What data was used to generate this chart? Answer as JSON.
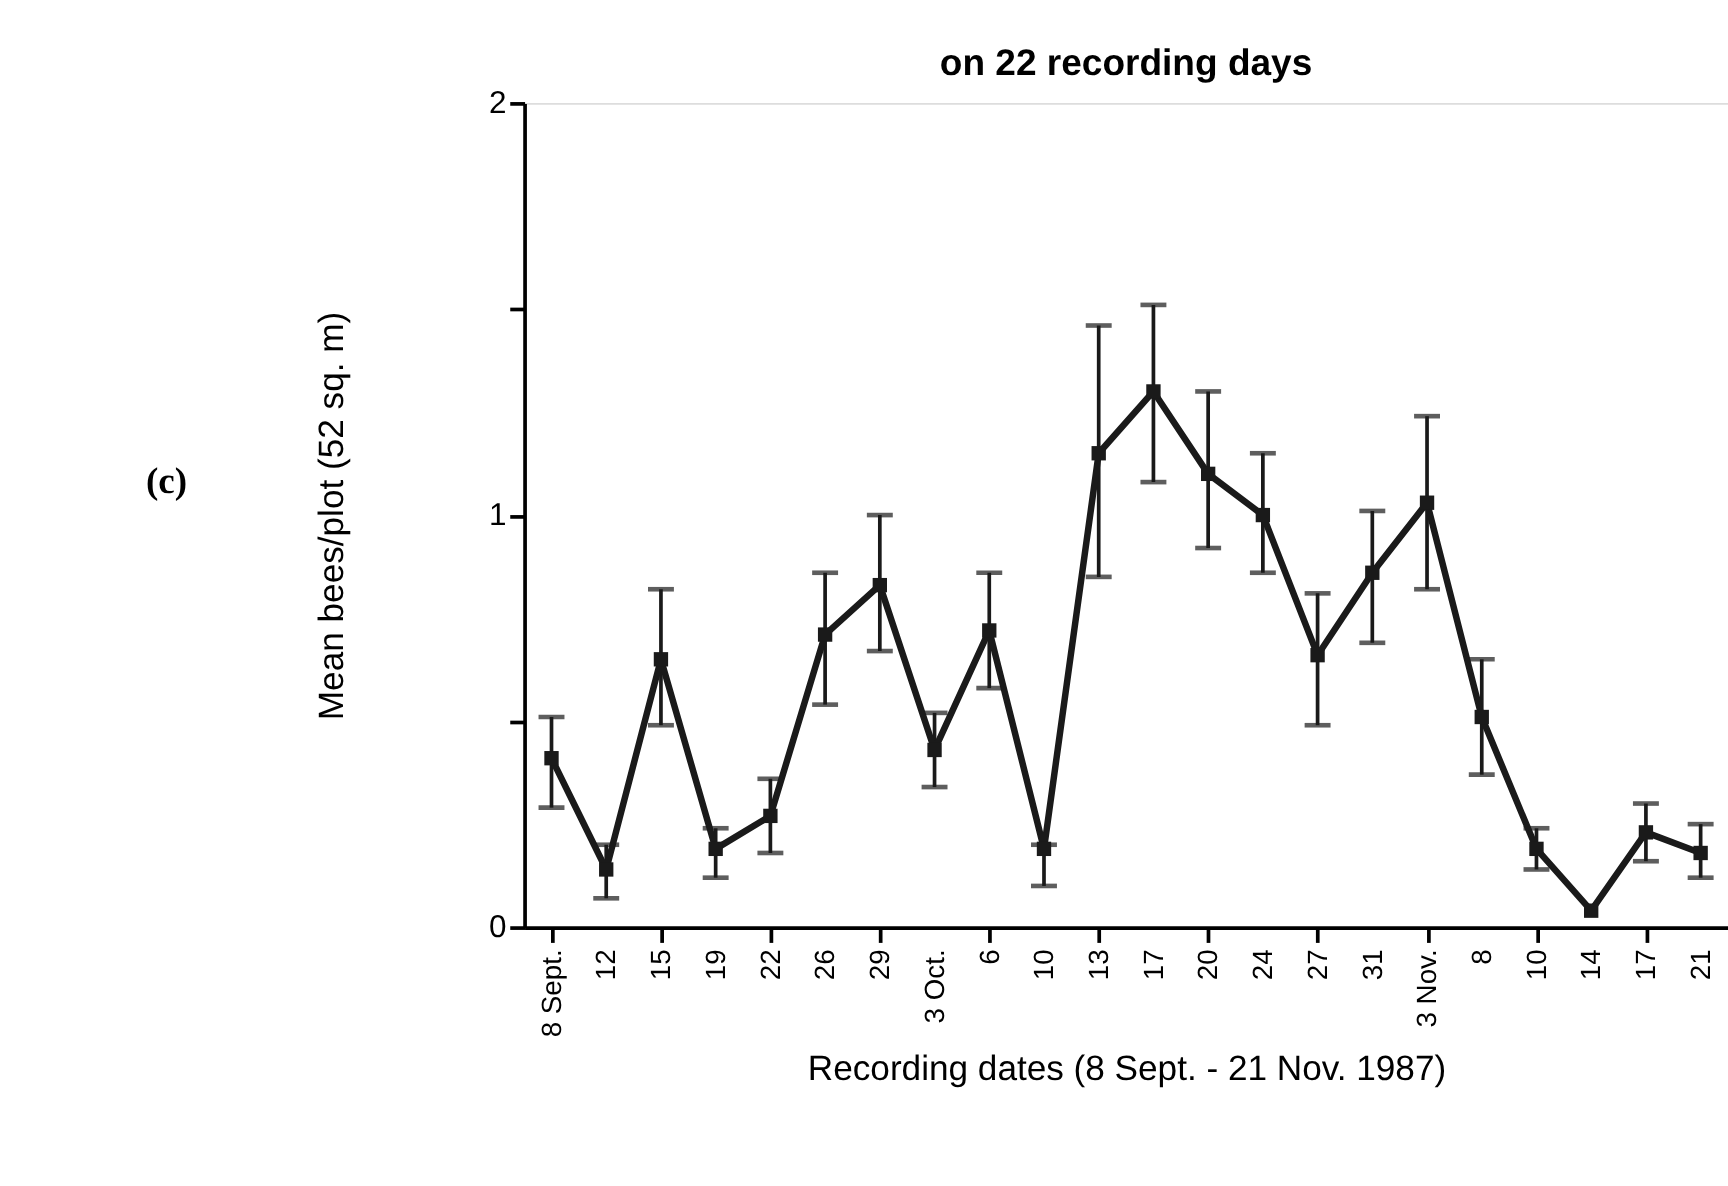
{
  "chart_data": {
    "type": "line",
    "title": "on 22 recording days",
    "xlabel": "Recording dates (8 Sept. - 21 Nov. 1987)",
    "ylabel": "Mean bees/plot (52 sq. m)",
    "annotations": [
      "(c)"
    ],
    "categories": [
      "8 Sept.",
      "12",
      "15",
      "19",
      "22",
      "26",
      "29",
      "3 Oct.",
      "6",
      "10",
      "13",
      "17",
      "20",
      "24",
      "27",
      "31",
      "3 Nov.",
      "8",
      "10",
      "14",
      "17",
      "21"
    ],
    "series": [
      {
        "color": "#1a1a1a",
        "values": [
          0.41,
          0.14,
          0.65,
          0.19,
          0.27,
          0.71,
          0.83,
          0.43,
          0.72,
          0.19,
          1.15,
          1.3,
          1.1,
          1.0,
          0.66,
          0.86,
          1.03,
          0.51,
          0.19,
          0.04,
          0.23,
          0.18
        ],
        "errors": [
          [
            0.29,
            0.51
          ],
          [
            0.07,
            0.2
          ],
          [
            0.49,
            0.82
          ],
          [
            0.12,
            0.24
          ],
          [
            0.18,
            0.36
          ],
          [
            0.54,
            0.86
          ],
          [
            0.67,
            1.0
          ],
          [
            0.34,
            0.52
          ],
          [
            0.58,
            0.86
          ],
          [
            0.1,
            0.2
          ],
          [
            0.85,
            1.46
          ],
          [
            1.08,
            1.51
          ],
          [
            0.92,
            1.3
          ],
          [
            0.86,
            1.15
          ],
          [
            0.49,
            0.81
          ],
          [
            0.69,
            1.01
          ],
          [
            0.82,
            1.24
          ],
          [
            0.37,
            0.65
          ],
          [
            0.14,
            0.24
          ],
          null,
          [
            0.16,
            0.3
          ],
          [
            0.12,
            0.25
          ]
        ]
      }
    ],
    "ylim": [
      0,
      2
    ],
    "yticks": [
      0,
      {
        "value": 0.5,
        "label": null
      },
      1,
      {
        "value": 1.5,
        "label": null
      },
      2
    ],
    "grid": false,
    "marker": "square",
    "line_style": "solid"
  }
}
